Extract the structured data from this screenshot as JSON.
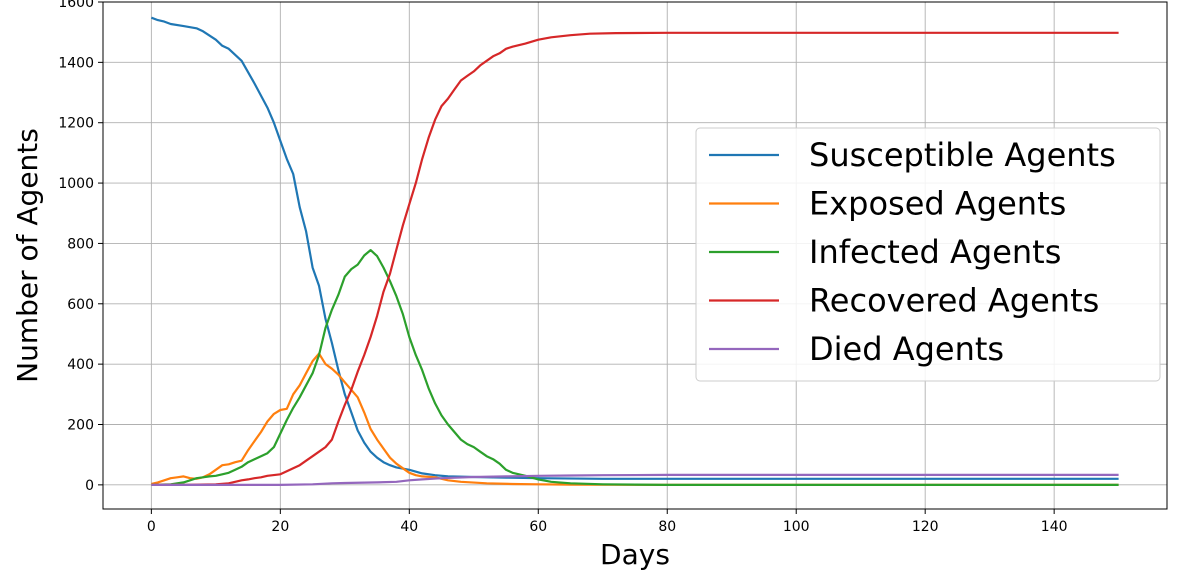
{
  "chart_data": {
    "type": "line",
    "title": "",
    "xlabel": "Days",
    "ylabel": "Number of Agents",
    "xlim": [
      -7.5,
      157.5
    ],
    "ylim": [
      -80,
      1600
    ],
    "xticks": [
      0,
      20,
      40,
      60,
      80,
      100,
      120,
      140
    ],
    "yticks": [
      0,
      200,
      400,
      600,
      800,
      1000,
      1200,
      1400,
      1600
    ],
    "grid": true,
    "legend_position": "center-right",
    "series": [
      {
        "name": "Susceptible Agents",
        "color": "#1f77b4",
        "points": [
          [
            0,
            1548
          ],
          [
            1,
            1540
          ],
          [
            2,
            1535
          ],
          [
            3,
            1527
          ],
          [
            5,
            1520
          ],
          [
            7,
            1513
          ],
          [
            8,
            1503
          ],
          [
            10,
            1475
          ],
          [
            11,
            1455
          ],
          [
            12,
            1445
          ],
          [
            14,
            1405
          ],
          [
            16,
            1330
          ],
          [
            18,
            1250
          ],
          [
            19,
            1200
          ],
          [
            20,
            1140
          ],
          [
            21,
            1080
          ],
          [
            22,
            1030
          ],
          [
            23,
            920
          ],
          [
            24,
            840
          ],
          [
            25,
            720
          ],
          [
            26,
            660
          ],
          [
            27,
            550
          ],
          [
            28,
            470
          ],
          [
            29,
            380
          ],
          [
            30,
            300
          ],
          [
            31,
            240
          ],
          [
            32,
            180
          ],
          [
            33,
            140
          ],
          [
            34,
            110
          ],
          [
            35,
            90
          ],
          [
            36,
            75
          ],
          [
            37,
            65
          ],
          [
            38,
            58
          ],
          [
            40,
            50
          ],
          [
            42,
            38
          ],
          [
            44,
            32
          ],
          [
            46,
            28
          ],
          [
            50,
            26
          ],
          [
            55,
            24
          ],
          [
            60,
            22
          ],
          [
            70,
            20
          ],
          [
            80,
            20
          ],
          [
            100,
            20
          ],
          [
            120,
            20
          ],
          [
            150,
            20
          ]
        ]
      },
      {
        "name": "Exposed Agents",
        "color": "#ff7f0e",
        "points": [
          [
            0,
            3
          ],
          [
            1,
            8
          ],
          [
            2,
            15
          ],
          [
            3,
            22
          ],
          [
            4,
            25
          ],
          [
            5,
            28
          ],
          [
            6,
            22
          ],
          [
            7,
            20
          ],
          [
            8,
            25
          ],
          [
            9,
            35
          ],
          [
            10,
            50
          ],
          [
            11,
            65
          ],
          [
            12,
            68
          ],
          [
            13,
            75
          ],
          [
            14,
            80
          ],
          [
            15,
            115
          ],
          [
            16,
            145
          ],
          [
            17,
            175
          ],
          [
            18,
            210
          ],
          [
            19,
            235
          ],
          [
            20,
            248
          ],
          [
            21,
            252
          ],
          [
            22,
            300
          ],
          [
            23,
            330
          ],
          [
            24,
            370
          ],
          [
            25,
            410
          ],
          [
            26,
            435
          ],
          [
            27,
            400
          ],
          [
            28,
            385
          ],
          [
            29,
            365
          ],
          [
            30,
            340
          ],
          [
            31,
            315
          ],
          [
            32,
            290
          ],
          [
            33,
            240
          ],
          [
            34,
            185
          ],
          [
            35,
            150
          ],
          [
            36,
            120
          ],
          [
            37,
            90
          ],
          [
            38,
            70
          ],
          [
            39,
            55
          ],
          [
            40,
            40
          ],
          [
            41,
            32
          ],
          [
            42,
            28
          ],
          [
            44,
            25
          ],
          [
            46,
            15
          ],
          [
            48,
            10
          ],
          [
            52,
            5
          ],
          [
            56,
            3
          ],
          [
            60,
            2
          ],
          [
            65,
            1
          ],
          [
            80,
            0
          ],
          [
            100,
            0
          ],
          [
            120,
            0
          ],
          [
            150,
            0
          ]
        ]
      },
      {
        "name": "Infected Agents",
        "color": "#2ca02c",
        "points": [
          [
            0,
            0
          ],
          [
            3,
            2
          ],
          [
            5,
            8
          ],
          [
            6,
            15
          ],
          [
            7,
            22
          ],
          [
            8,
            25
          ],
          [
            9,
            28
          ],
          [
            10,
            30
          ],
          [
            11,
            35
          ],
          [
            12,
            40
          ],
          [
            13,
            50
          ],
          [
            14,
            60
          ],
          [
            15,
            75
          ],
          [
            16,
            85
          ],
          [
            17,
            95
          ],
          [
            18,
            105
          ],
          [
            19,
            125
          ],
          [
            20,
            170
          ],
          [
            21,
            215
          ],
          [
            22,
            255
          ],
          [
            23,
            290
          ],
          [
            24,
            330
          ],
          [
            25,
            370
          ],
          [
            26,
            430
          ],
          [
            27,
            520
          ],
          [
            28,
            580
          ],
          [
            29,
            630
          ],
          [
            30,
            690
          ],
          [
            31,
            715
          ],
          [
            32,
            730
          ],
          [
            33,
            760
          ],
          [
            34,
            778
          ],
          [
            35,
            758
          ],
          [
            36,
            720
          ],
          [
            37,
            675
          ],
          [
            38,
            625
          ],
          [
            39,
            565
          ],
          [
            40,
            490
          ],
          [
            41,
            430
          ],
          [
            42,
            380
          ],
          [
            43,
            320
          ],
          [
            44,
            270
          ],
          [
            45,
            230
          ],
          [
            46,
            200
          ],
          [
            47,
            175
          ],
          [
            48,
            150
          ],
          [
            49,
            135
          ],
          [
            50,
            125
          ],
          [
            51,
            110
          ],
          [
            52,
            95
          ],
          [
            53,
            85
          ],
          [
            54,
            70
          ],
          [
            55,
            50
          ],
          [
            56,
            40
          ],
          [
            58,
            30
          ],
          [
            60,
            18
          ],
          [
            62,
            10
          ],
          [
            65,
            5
          ],
          [
            70,
            2
          ],
          [
            80,
            0
          ],
          [
            100,
            0
          ],
          [
            120,
            0
          ],
          [
            150,
            0
          ]
        ]
      },
      {
        "name": "Recovered Agents",
        "color": "#d62728",
        "points": [
          [
            0,
            0
          ],
          [
            5,
            0
          ],
          [
            10,
            2
          ],
          [
            12,
            5
          ],
          [
            13,
            10
          ],
          [
            14,
            15
          ],
          [
            15,
            18
          ],
          [
            16,
            22
          ],
          [
            17,
            25
          ],
          [
            18,
            30
          ],
          [
            20,
            35
          ],
          [
            21,
            45
          ],
          [
            22,
            55
          ],
          [
            23,
            65
          ],
          [
            24,
            80
          ],
          [
            25,
            95
          ],
          [
            26,
            110
          ],
          [
            27,
            125
          ],
          [
            28,
            150
          ],
          [
            29,
            210
          ],
          [
            30,
            265
          ],
          [
            31,
            315
          ],
          [
            32,
            375
          ],
          [
            33,
            430
          ],
          [
            34,
            490
          ],
          [
            35,
            560
          ],
          [
            36,
            640
          ],
          [
            37,
            700
          ],
          [
            38,
            780
          ],
          [
            39,
            860
          ],
          [
            40,
            930
          ],
          [
            41,
            1000
          ],
          [
            42,
            1080
          ],
          [
            43,
            1150
          ],
          [
            44,
            1210
          ],
          [
            45,
            1255
          ],
          [
            46,
            1280
          ],
          [
            47,
            1310
          ],
          [
            48,
            1340
          ],
          [
            49,
            1355
          ],
          [
            50,
            1370
          ],
          [
            51,
            1390
          ],
          [
            52,
            1405
          ],
          [
            53,
            1420
          ],
          [
            54,
            1430
          ],
          [
            55,
            1445
          ],
          [
            56,
            1452
          ],
          [
            58,
            1462
          ],
          [
            60,
            1475
          ],
          [
            62,
            1483
          ],
          [
            65,
            1490
          ],
          [
            68,
            1495
          ],
          [
            72,
            1497
          ],
          [
            80,
            1498
          ],
          [
            100,
            1498
          ],
          [
            120,
            1498
          ],
          [
            150,
            1498
          ]
        ]
      },
      {
        "name": "Died Agents",
        "color": "#9467bd",
        "points": [
          [
            0,
            0
          ],
          [
            10,
            0
          ],
          [
            20,
            0
          ],
          [
            25,
            2
          ],
          [
            28,
            5
          ],
          [
            30,
            6
          ],
          [
            35,
            8
          ],
          [
            38,
            10
          ],
          [
            40,
            15
          ],
          [
            42,
            18
          ],
          [
            45,
            22
          ],
          [
            50,
            26
          ],
          [
            55,
            28
          ],
          [
            60,
            30
          ],
          [
            65,
            31
          ],
          [
            70,
            32
          ],
          [
            80,
            33
          ],
          [
            100,
            33
          ],
          [
            120,
            33
          ],
          [
            150,
            33
          ]
        ]
      }
    ]
  }
}
